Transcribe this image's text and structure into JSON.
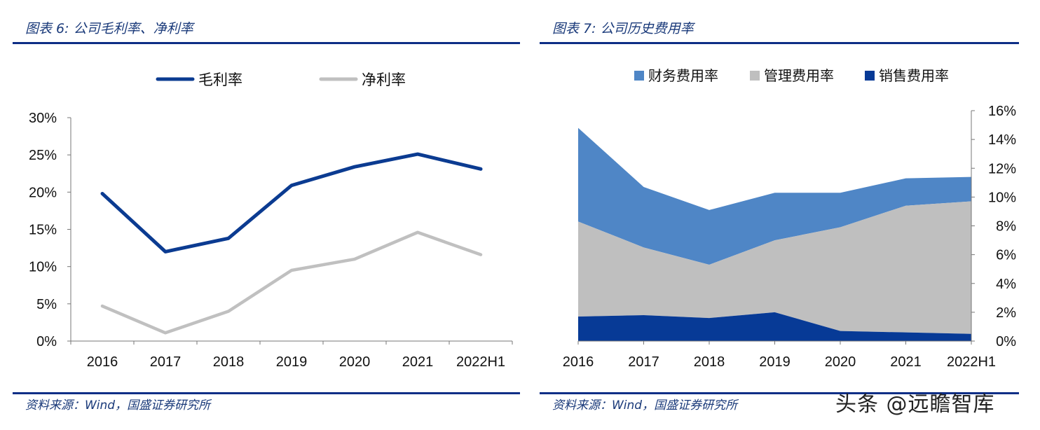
{
  "left": {
    "title": "图表 6:  公司毛利率、净利率",
    "source": "资料来源：Wind，国盛证券研究所"
  },
  "right": {
    "title": "图表 7:  公司历史费用率",
    "source": "资料来源：Wind，国盛证券研究所"
  },
  "watermark": "头条 @远瞻智库",
  "colors": {
    "rule": "#0d2e86",
    "gross": "#0b3b91",
    "net": "#c0c0c0",
    "finance": "#4f86c6",
    "admin": "#bfbfbf",
    "sales": "#073a96"
  },
  "chart_data": [
    {
      "type": "line",
      "categories": [
        "2016",
        "2017",
        "2018",
        "2019",
        "2020",
        "2021",
        "2022H1"
      ],
      "series": [
        {
          "name": "毛利率",
          "values": [
            19.8,
            12.0,
            13.8,
            20.9,
            23.4,
            25.1,
            23.1
          ]
        },
        {
          "name": "净利率",
          "values": [
            4.7,
            1.1,
            4.0,
            9.5,
            11.0,
            14.6,
            11.6
          ]
        }
      ],
      "ylim": [
        0,
        30
      ],
      "yticks": [
        "0%",
        "5%",
        "10%",
        "15%",
        "20%",
        "25%",
        "30%"
      ],
      "legend": "top",
      "grid": false
    },
    {
      "type": "area",
      "stacked": true,
      "categories": [
        "2016",
        "2017",
        "2018",
        "2019",
        "2020",
        "2021",
        "2022H1"
      ],
      "series": [
        {
          "name": "财务费用率",
          "values": [
            6.5,
            4.2,
            3.8,
            3.3,
            2.4,
            1.9,
            1.7
          ]
        },
        {
          "name": "管理费用率",
          "values": [
            6.6,
            4.7,
            3.7,
            5.0,
            7.2,
            8.8,
            9.2
          ]
        },
        {
          "name": "销售费用率",
          "values": [
            1.7,
            1.8,
            1.6,
            2.0,
            0.7,
            0.6,
            0.5
          ]
        }
      ],
      "ylim": [
        0,
        16
      ],
      "yticks": [
        "0%",
        "2%",
        "4%",
        "6%",
        "8%",
        "10%",
        "12%",
        "14%",
        "16%"
      ],
      "yaxis_side": "right",
      "legend": "top",
      "grid": false
    }
  ]
}
